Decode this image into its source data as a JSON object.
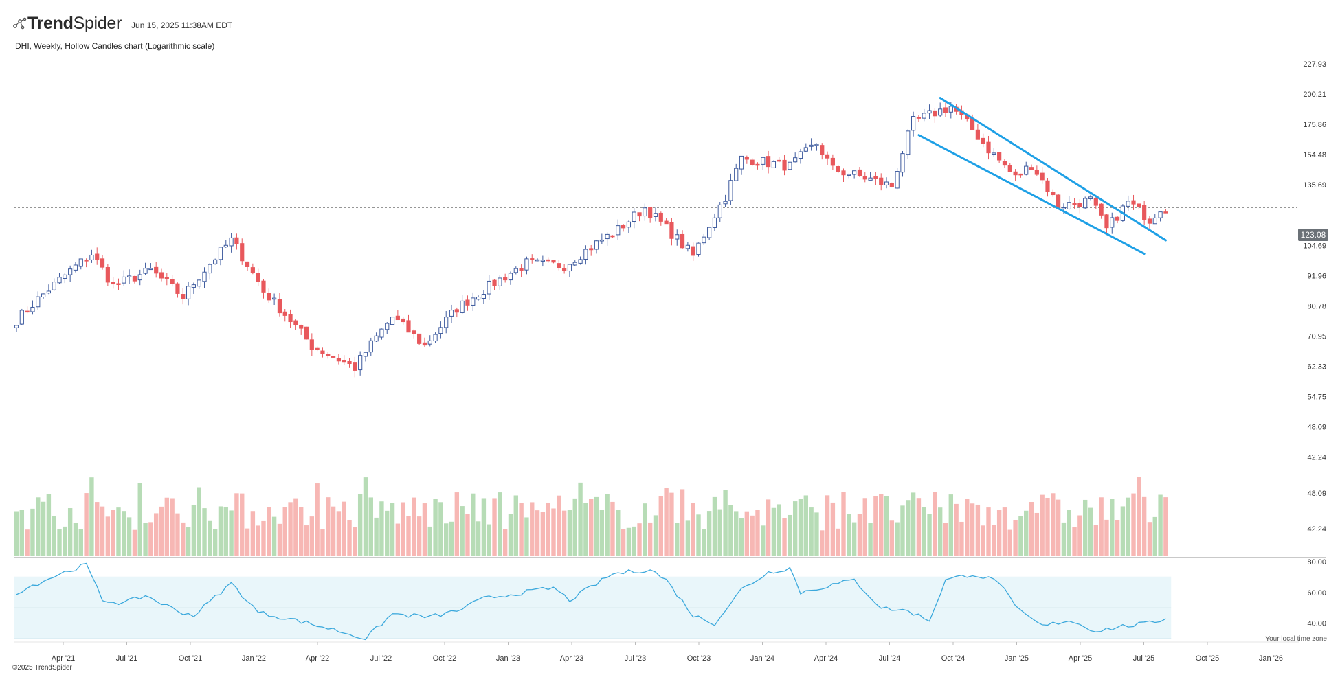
{
  "header": {
    "brand_prefix": "Trend",
    "brand_suffix": "Spider",
    "timestamp": "Jun 15, 2025 11:38AM EDT",
    "subtitle": "DHI, Weekly, Hollow Candles chart (Logarithmic scale)"
  },
  "footer": {
    "copyright": "©2025 TrendSpider",
    "timezone_note": "Your local time zone"
  },
  "colors": {
    "up": "#3d5a9e",
    "down": "#e8585c",
    "volume_up": "#b7dcb6",
    "volume_down": "#f7b7b4",
    "trendline": "#1ea0e6",
    "rsi_line": "#3aa8dc",
    "rsi_band": "#e9f6fa"
  },
  "icons": {
    "logo": "spider-web-icon"
  },
  "chart_data": [
    {
      "type": "candlestick",
      "title": "DHI, Weekly, Hollow Candles chart (Logarithmic scale)",
      "scale": "log",
      "x_ticks": [
        "Apr '21",
        "Jul '21",
        "Oct '21",
        "Jan '22",
        "Apr '22",
        "Jul '22",
        "Oct '22",
        "Jan '23",
        "Apr '23",
        "Jul '23",
        "Oct '23",
        "Jan '24",
        "Apr '24",
        "Jul '24",
        "Oct '24",
        "Jan '25",
        "Apr '25",
        "Jul '25",
        "Oct '25",
        "Jan '26"
      ],
      "y_ticks": [
        "227.93",
        "200.21",
        "175.86",
        "154.48",
        "135.69",
        "104.69",
        "91.96",
        "80.78",
        "70.95",
        "62.33",
        "54.75",
        "48.09",
        "42.24"
      ],
      "ylim": [
        40.5,
        232
      ],
      "last_price": "123.08",
      "anchors": [
        {
          "week": 0,
          "price": 76
        },
        {
          "week": 14,
          "price": 101
        },
        {
          "week": 18,
          "price": 88
        },
        {
          "week": 25,
          "price": 94
        },
        {
          "week": 31,
          "price": 84
        },
        {
          "week": 40,
          "price": 107
        },
        {
          "week": 46,
          "price": 86
        },
        {
          "week": 55,
          "price": 68
        },
        {
          "week": 63,
          "price": 62
        },
        {
          "week": 70,
          "price": 77
        },
        {
          "week": 76,
          "price": 68
        },
        {
          "week": 82,
          "price": 80
        },
        {
          "week": 95,
          "price": 97
        },
        {
          "week": 102,
          "price": 96
        },
        {
          "week": 112,
          "price": 112
        },
        {
          "week": 117,
          "price": 123
        },
        {
          "week": 126,
          "price": 100
        },
        {
          "week": 132,
          "price": 129
        },
        {
          "week": 135,
          "price": 152
        },
        {
          "week": 144,
          "price": 147
        },
        {
          "week": 149,
          "price": 162
        },
        {
          "week": 152,
          "price": 145
        },
        {
          "week": 158,
          "price": 140
        },
        {
          "week": 163,
          "price": 135
        },
        {
          "week": 167,
          "price": 178
        },
        {
          "week": 174,
          "price": 190
        },
        {
          "week": 181,
          "price": 158
        },
        {
          "week": 186,
          "price": 140
        },
        {
          "week": 189,
          "price": 148
        },
        {
          "week": 194,
          "price": 124
        },
        {
          "week": 200,
          "price": 127
        },
        {
          "week": 203,
          "price": 112
        },
        {
          "week": 207,
          "price": 126
        },
        {
          "week": 211,
          "price": 117
        },
        {
          "week": 213,
          "price": 123
        }
      ],
      "channel_lines": [
        {
          "name": "upper",
          "start": {
            "week": 172,
            "price": 197
          },
          "end": {
            "week": 214,
            "price": 107
          }
        },
        {
          "name": "lower",
          "start": {
            "week": 168,
            "price": 168
          },
          "end": {
            "week": 210,
            "price": 101
          }
        }
      ]
    },
    {
      "type": "bar",
      "name": "volume",
      "y_ticks": [
        "48.09",
        "42.24"
      ]
    },
    {
      "type": "line",
      "name": "RSI",
      "ylim": [
        30,
        80
      ],
      "y_ticks": [
        "80.00",
        "60.00",
        "40.00"
      ],
      "band": [
        30,
        70
      ],
      "midline": 50,
      "anchors": [
        {
          "week": 0,
          "value": 60
        },
        {
          "week": 8,
          "value": 72
        },
        {
          "week": 13,
          "value": 78
        },
        {
          "week": 16,
          "value": 55
        },
        {
          "week": 20,
          "value": 53
        },
        {
          "week": 24,
          "value": 58
        },
        {
          "week": 30,
          "value": 48
        },
        {
          "week": 33,
          "value": 45
        },
        {
          "week": 40,
          "value": 66
        },
        {
          "week": 45,
          "value": 47
        },
        {
          "week": 52,
          "value": 42
        },
        {
          "week": 60,
          "value": 35
        },
        {
          "week": 65,
          "value": 30
        },
        {
          "week": 70,
          "value": 46
        },
        {
          "week": 77,
          "value": 44
        },
        {
          "week": 82,
          "value": 48
        },
        {
          "week": 87,
          "value": 56
        },
        {
          "week": 100,
          "value": 63
        },
        {
          "week": 103,
          "value": 55
        },
        {
          "week": 111,
          "value": 72
        },
        {
          "week": 118,
          "value": 75
        },
        {
          "week": 121,
          "value": 68
        },
        {
          "week": 126,
          "value": 45
        },
        {
          "week": 130,
          "value": 40
        },
        {
          "week": 135,
          "value": 62
        },
        {
          "week": 140,
          "value": 73
        },
        {
          "week": 144,
          "value": 76
        },
        {
          "week": 146,
          "value": 60
        },
        {
          "week": 152,
          "value": 65
        },
        {
          "week": 156,
          "value": 68
        },
        {
          "week": 161,
          "value": 50
        },
        {
          "week": 166,
          "value": 48
        },
        {
          "week": 170,
          "value": 42
        },
        {
          "week": 173,
          "value": 68
        },
        {
          "week": 178,
          "value": 72
        },
        {
          "week": 183,
          "value": 67
        },
        {
          "week": 186,
          "value": 50
        },
        {
          "week": 191,
          "value": 38
        },
        {
          "week": 196,
          "value": 42
        },
        {
          "week": 201,
          "value": 35
        },
        {
          "week": 206,
          "value": 38
        },
        {
          "week": 211,
          "value": 40
        },
        {
          "week": 214,
          "value": 43
        }
      ]
    }
  ]
}
